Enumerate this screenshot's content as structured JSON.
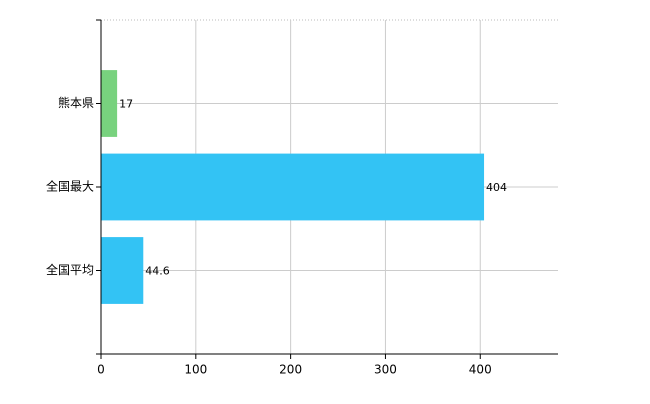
{
  "chart_data": {
    "type": "barh",
    "categories": [
      "熊本県",
      "全国最大",
      "全国平均"
    ],
    "values": [
      17,
      404,
      44.6
    ],
    "colors": [
      "#78d27e",
      "#33c3f4",
      "#33c3f4"
    ],
    "xlim": [
      0,
      482
    ],
    "xticks": [
      0,
      100,
      200,
      300,
      400
    ],
    "grid": true
  }
}
